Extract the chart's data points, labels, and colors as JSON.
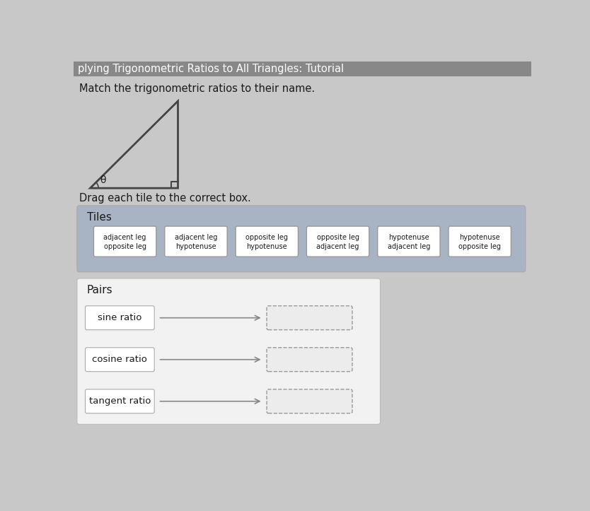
{
  "title": "plying Trigonometric Ratios to All Triangles: Tutorial",
  "subtitle": "Match the trigonometric ratios to their name.",
  "drag_instruction": "Drag each tile to the correct box.",
  "bg_color": "#c8c8c8",
  "header_bg": "#888888",
  "tiles_bg": "#a8b4c4",
  "pairs_bg": "#efefef",
  "tile_bg": "#ffffff",
  "tile_border": "#999999",
  "tiles_label": "Tiles",
  "pairs_label": "Pairs",
  "tiles": [
    [
      "adjacent leg",
      "opposite leg"
    ],
    [
      "adjacent leg",
      "hypotenuse"
    ],
    [
      "opposite leg",
      "hypotenuse"
    ],
    [
      "opposite leg",
      "adjacent leg"
    ],
    [
      "hypotenuse",
      "adjacent leg"
    ],
    [
      "hypotenuse",
      "opposite leg"
    ]
  ],
  "pairs": [
    "sine ratio",
    "cosine ratio",
    "tangent ratio"
  ],
  "font_color": "#1a1a1a",
  "arrow_color": "#888888",
  "triangle_color": "#444444"
}
